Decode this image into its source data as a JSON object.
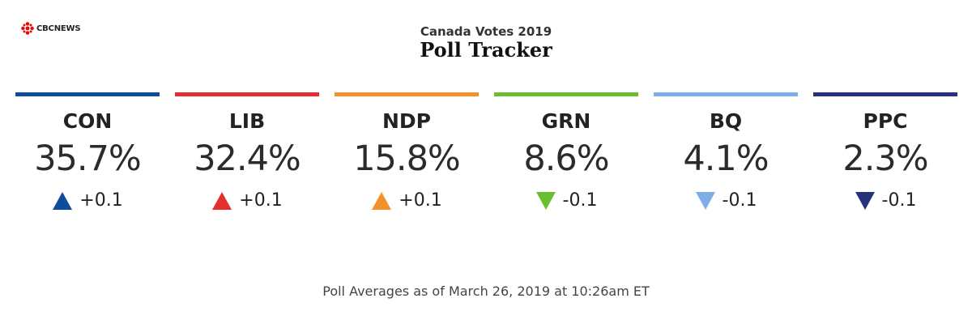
{
  "brand": {
    "logo_text": "CBCNEWS"
  },
  "header": {
    "subtitle": "Canada Votes 2019",
    "title": "Poll Tracker"
  },
  "footer": {
    "text": "Poll Averages as of March 26, 2019 at 10:26am ET"
  },
  "chart_data": {
    "type": "table",
    "subtitle": "Canada Votes 2019",
    "title": "Poll Tracker",
    "unit": "%",
    "parties": [
      {
        "name": "CON",
        "value": "35.7%",
        "change": "+0.1",
        "direction": "up",
        "color": "#0f4c9e"
      },
      {
        "name": "LIB",
        "value": "32.4%",
        "change": "+0.1",
        "direction": "up",
        "color": "#e3302f"
      },
      {
        "name": "NDP",
        "value": "15.8%",
        "change": "+0.1",
        "direction": "up",
        "color": "#f3922a"
      },
      {
        "name": "GRN",
        "value": "8.6%",
        "change": "-0.1",
        "direction": "down",
        "color": "#6abf2e"
      },
      {
        "name": "BQ",
        "value": "4.1%",
        "change": "-0.1",
        "direction": "down",
        "color": "#7eaee6"
      },
      {
        "name": "PPC",
        "value": "2.3%",
        "change": "-0.1",
        "direction": "down",
        "color": "#26327a"
      }
    ]
  }
}
